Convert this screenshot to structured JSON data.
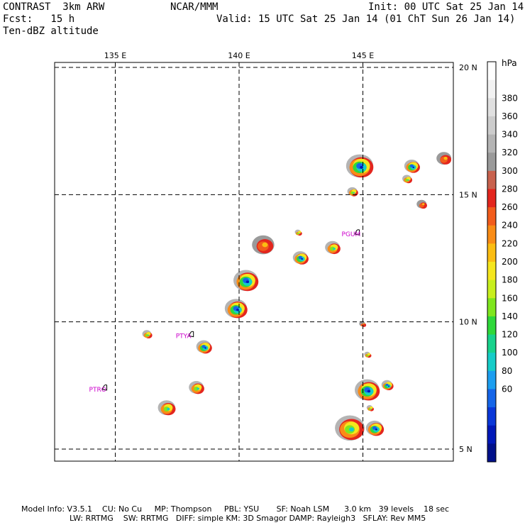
{
  "header": {
    "line1_left": "CONTRAST  3km ARW",
    "line1_mid": "NCAR/MMM",
    "line1_right": "Init: 00 UTC Sat 25 Jan 14",
    "line2_left": "Fcst:   15 h",
    "line2_right": "Valid: 15 UTC Sat 25 Jan 14 (01 ChT Sun 26 Jan 14)",
    "line3_left": "Ten-dBZ altitude"
  },
  "footer": {
    "line1": "Model Info: V3.5.1    CU: No Cu     MP: Thompson     PBL: YSU       SF: Noah LSM      3.0 km   39 levels    18 sec",
    "line2": "LW: RRTMG    SW: RRTMG   DIFF: simple KM: 3D Smagor DAMP: Rayleigh3   SFLAY: Rev MM5"
  },
  "chart_data": {
    "type": "heatmap",
    "title": "Ten-dBZ altitude",
    "xaxis": {
      "ticks": [
        135,
        140,
        145
      ],
      "tick_labels": [
        "135 E",
        "140 E",
        "145 E"
      ],
      "range": [
        132.6,
        148.7
      ]
    },
    "yaxis": {
      "ticks": [
        5,
        10,
        15,
        20
      ],
      "tick_labels": [
        "5 N",
        "10 N",
        "15 N",
        "20 N"
      ],
      "range": [
        4.5,
        20.5
      ]
    },
    "grid": true,
    "colorbar": {
      "unit": "hPa",
      "labels": [
        380,
        360,
        340,
        320,
        300,
        280,
        260,
        240,
        220,
        200,
        180,
        160,
        140,
        120,
        100,
        80,
        60
      ],
      "colors": [
        "#ffffff",
        "#f2f2f2",
        "#e0e0e0",
        "#cccccc",
        "#b4b4b4",
        "#9a9a9a",
        "#c8624e",
        "#e3261e",
        "#f25c1c",
        "#f98c16",
        "#fbbd12",
        "#f5e61e",
        "#c8ef1e",
        "#7fe61e",
        "#2fd83a",
        "#18d28c",
        "#16ccc8",
        "#1c9ef0",
        "#1565e8",
        "#0a37d8",
        "#0018b8",
        "#00108a"
      ]
    },
    "stations": [
      {
        "label": "PGUM",
        "lon": 144.8,
        "lat": 13.5
      },
      {
        "label": "PTYA",
        "lon": 138.1,
        "lat": 9.5
      },
      {
        "label": "PTRO",
        "lon": 134.6,
        "lat": 7.4
      }
    ],
    "cells": [
      {
        "lon": 144.9,
        "lat": 16.1,
        "r": 0.55,
        "level": "low"
      },
      {
        "lon": 144.6,
        "lat": 15.1,
        "r": 0.2,
        "level": "mid"
      },
      {
        "lon": 147.0,
        "lat": 16.1,
        "r": 0.3,
        "level": "low"
      },
      {
        "lon": 146.8,
        "lat": 15.6,
        "r": 0.18,
        "level": "mid"
      },
      {
        "lon": 148.3,
        "lat": 16.4,
        "r": 0.3,
        "level": "high"
      },
      {
        "lon": 147.4,
        "lat": 14.6,
        "r": 0.2,
        "level": "high"
      },
      {
        "lon": 142.5,
        "lat": 12.5,
        "r": 0.3,
        "level": "low"
      },
      {
        "lon": 143.8,
        "lat": 12.9,
        "r": 0.3,
        "level": "mid"
      },
      {
        "lon": 142.4,
        "lat": 13.5,
        "r": 0.12,
        "level": "mid"
      },
      {
        "lon": 141.0,
        "lat": 13.0,
        "r": 0.45,
        "level": "high"
      },
      {
        "lon": 140.3,
        "lat": 11.6,
        "r": 0.5,
        "level": "low"
      },
      {
        "lon": 139.9,
        "lat": 10.5,
        "r": 0.45,
        "level": "low"
      },
      {
        "lon": 136.3,
        "lat": 9.5,
        "r": 0.18,
        "level": "mid"
      },
      {
        "lon": 138.6,
        "lat": 9.0,
        "r": 0.3,
        "level": "low"
      },
      {
        "lon": 138.3,
        "lat": 7.4,
        "r": 0.3,
        "level": "mid"
      },
      {
        "lon": 137.1,
        "lat": 6.6,
        "r": 0.35,
        "level": "mid"
      },
      {
        "lon": 145.2,
        "lat": 7.3,
        "r": 0.5,
        "level": "low"
      },
      {
        "lon": 146.0,
        "lat": 7.5,
        "r": 0.22,
        "level": "low"
      },
      {
        "lon": 144.5,
        "lat": 5.8,
        "r": 0.6,
        "level": "mid"
      },
      {
        "lon": 145.5,
        "lat": 5.8,
        "r": 0.35,
        "level": "low"
      },
      {
        "lon": 145.3,
        "lat": 6.6,
        "r": 0.12,
        "level": "mid"
      },
      {
        "lon": 145.0,
        "lat": 9.9,
        "r": 0.12,
        "level": "high"
      },
      {
        "lon": 145.2,
        "lat": 8.7,
        "r": 0.12,
        "level": "mid"
      }
    ]
  }
}
